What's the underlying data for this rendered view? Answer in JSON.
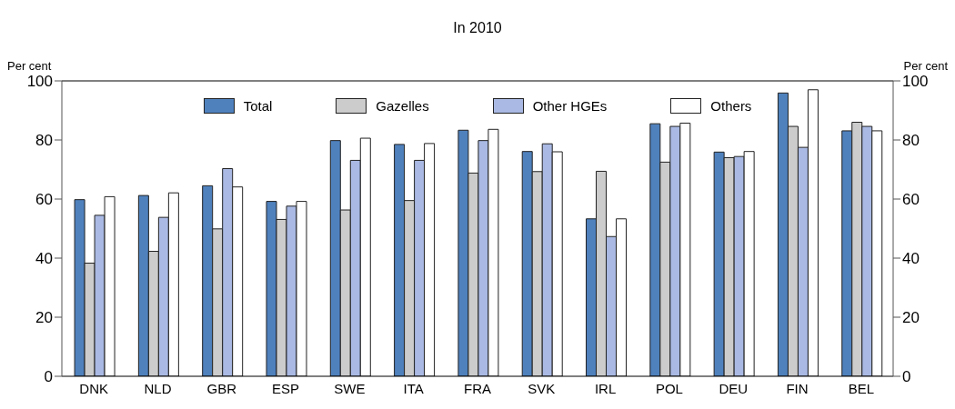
{
  "chart_data": {
    "type": "bar",
    "title": "In 2010",
    "ylabel": "Per cent",
    "y2label": "Per cent",
    "categories": [
      "DNK",
      "NLD",
      "GBR",
      "ESP",
      "SWE",
      "ITA",
      "FRA",
      "SVK",
      "IRL",
      "POL",
      "DEU",
      "FIN",
      "BEL"
    ],
    "series": [
      {
        "name": "Total",
        "color": "#4f81bd",
        "values": [
          59.8,
          61.2,
          64.5,
          59.2,
          79.8,
          78.5,
          83.3,
          76.1,
          53.3,
          85.5,
          75.9,
          95.9,
          83.1
        ]
      },
      {
        "name": "Gazelles",
        "color": "#cccccc",
        "values": [
          38.3,
          42.3,
          49.9,
          53.1,
          56.3,
          59.5,
          68.8,
          69.3,
          69.4,
          72.5,
          74.0,
          84.6,
          86.0
        ]
      },
      {
        "name": "Other HGEs",
        "color": "#a9b9e3",
        "values": [
          54.5,
          53.8,
          70.3,
          57.6,
          73.1,
          73.1,
          79.8,
          78.7,
          47.3,
          84.6,
          74.4,
          77.5,
          84.6
        ]
      },
      {
        "name": "Others",
        "color": "#ffffff",
        "values": [
          60.8,
          62.1,
          64.1,
          59.2,
          80.6,
          78.8,
          83.6,
          76.0,
          53.3,
          85.7,
          76.1,
          97.0,
          83.1
        ]
      }
    ],
    "ylim": [
      0,
      100
    ],
    "yticks": [
      0,
      20,
      40,
      60,
      80,
      100
    ],
    "y2lim": [
      0,
      100
    ],
    "y2ticks": [
      0,
      20,
      40,
      60,
      80,
      100
    ],
    "grid": false,
    "legend": "top"
  }
}
